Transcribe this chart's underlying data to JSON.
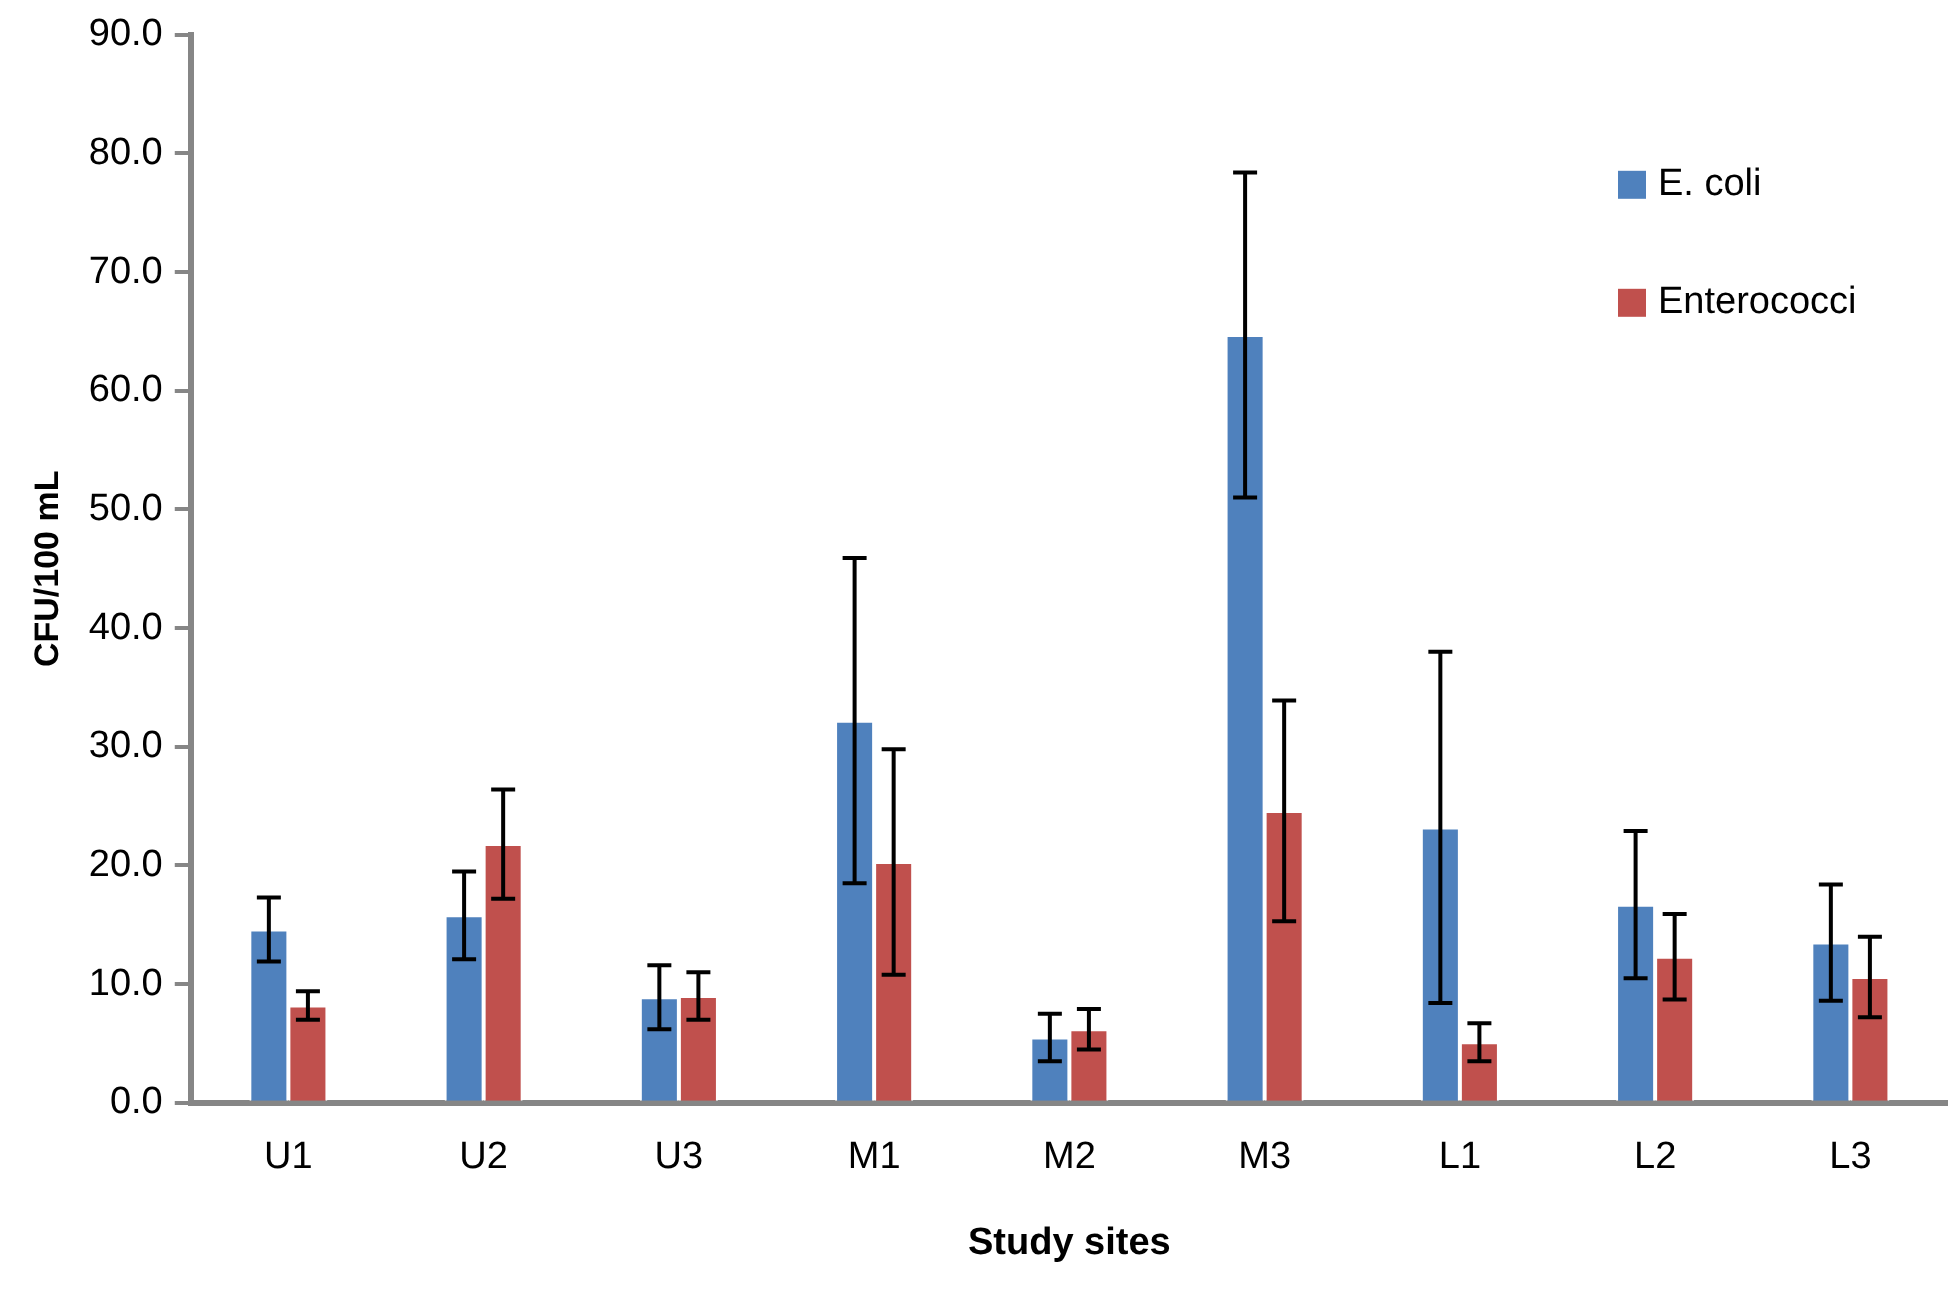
{
  "chart_data": {
    "type": "bar",
    "xlabel": "Study sites",
    "ylabel": "CFU/100 mL",
    "categories": [
      "U1",
      "U2",
      "U3",
      "M1",
      "M2",
      "M3",
      "L1",
      "L2",
      "L3"
    ],
    "series": [
      {
        "name": "E. coli",
        "color": "#4f81bd",
        "values": [
          14.6,
          15.8,
          8.9,
          32.2,
          5.5,
          64.7,
          23.2,
          16.7,
          13.5
        ],
        "errors": [
          2.7,
          3.7,
          2.7,
          13.7,
          2.0,
          13.7,
          14.8,
          6.2,
          4.9
        ]
      },
      {
        "name": "Enterococci",
        "color": "#c0504d",
        "values": [
          8.2,
          21.8,
          9.0,
          20.3,
          6.2,
          24.6,
          5.1,
          12.3,
          10.6
        ],
        "errors": [
          1.2,
          4.6,
          2.0,
          9.5,
          1.7,
          9.3,
          1.6,
          3.6,
          3.4
        ]
      }
    ],
    "ylim": [
      0,
      90
    ],
    "yticks": [
      {
        "value": 0,
        "label": "0.0"
      },
      {
        "value": 10,
        "label": "10.0"
      },
      {
        "value": 20,
        "label": "20.0"
      },
      {
        "value": 30,
        "label": "30.0"
      },
      {
        "value": 40,
        "label": "40.0"
      },
      {
        "value": 50,
        "label": "50.0"
      },
      {
        "value": 60,
        "label": "60.0"
      },
      {
        "value": 70,
        "label": "70.0"
      },
      {
        "value": 80,
        "label": "80.0"
      },
      {
        "value": 90,
        "label": "90.0"
      }
    ],
    "grid": false,
    "legend": "top right"
  }
}
